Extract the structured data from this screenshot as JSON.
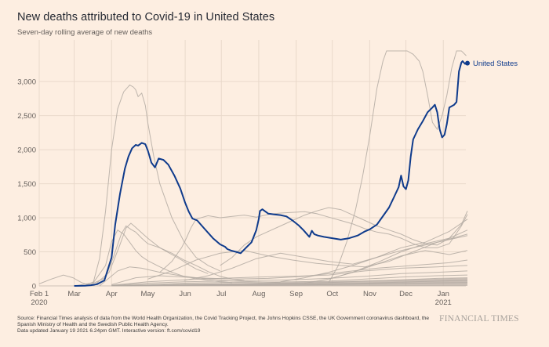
{
  "header": {
    "title": "New deaths attributed to Covid-19 in United States",
    "subtitle": "Seven-day rolling average of new deaths"
  },
  "footer": {
    "source_line": "Source: Financial Times analysis of data from the World Health Organization, the Covid Tracking Project, the Johns Hopkins CSSE, the UK Government coronavirus dashboard, the Spanish Ministry of Health and the Swedish Public Health Agency.",
    "updated_line": "Data updated January 19 2021 6.24pm GMT. Interactive version: ft.com/covid19",
    "logo": "FINANCIAL TIMES"
  },
  "colors": {
    "background": "#fdeee1",
    "highlight": "#0f3b8c",
    "context": "#b3aaa2"
  },
  "chart_data": {
    "type": "line",
    "title": "New deaths attributed to Covid-19 in United States",
    "subtitle": "Seven-day rolling average of new deaths",
    "xlabel": "",
    "ylabel": "",
    "x_unit": "days since Feb 1 2020",
    "xlim": [
      0,
      356
    ],
    "ylim": [
      0,
      3450
    ],
    "grid": true,
    "y_ticks": [
      {
        "value": 0,
        "label": "0"
      },
      {
        "value": 500,
        "label": "500"
      },
      {
        "value": 1000,
        "label": "1,000"
      },
      {
        "value": 1500,
        "label": "1,500"
      },
      {
        "value": 2000,
        "label": "2,000"
      },
      {
        "value": 2500,
        "label": "2,500"
      },
      {
        "value": 3000,
        "label": "3,000"
      }
    ],
    "x_ticks": [
      {
        "value": 0,
        "label": "Feb 1",
        "sub": "2020"
      },
      {
        "value": 29,
        "label": "Mar",
        "sub": ""
      },
      {
        "value": 60,
        "label": "Apr",
        "sub": ""
      },
      {
        "value": 90,
        "label": "May",
        "sub": ""
      },
      {
        "value": 121,
        "label": "Jun",
        "sub": ""
      },
      {
        "value": 151,
        "label": "Jul",
        "sub": ""
      },
      {
        "value": 182,
        "label": "Aug",
        "sub": ""
      },
      {
        "value": 213,
        "label": "Sep",
        "sub": ""
      },
      {
        "value": 243,
        "label": "Oct",
        "sub": ""
      },
      {
        "value": 274,
        "label": "Nov",
        "sub": ""
      },
      {
        "value": 304,
        "label": "Dec",
        "sub": ""
      },
      {
        "value": 335,
        "label": "Jan",
        "sub": "2021"
      }
    ],
    "highlight_series": {
      "name": "United States",
      "x": [
        29,
        38,
        43,
        48,
        54,
        60,
        63,
        67,
        71,
        74,
        77,
        80,
        82,
        85,
        88,
        90,
        91,
        93,
        96,
        99,
        103,
        107,
        112,
        117,
        121,
        124,
        127,
        131,
        137,
        144,
        150,
        154,
        156,
        159,
        163,
        167,
        172,
        176,
        180,
        182,
        183,
        185,
        190,
        195,
        200,
        205,
        210,
        215,
        219,
        222,
        224,
        226,
        228,
        231,
        236,
        243,
        250,
        257,
        264,
        270,
        274,
        280,
        284,
        290,
        294,
        298,
        300,
        302,
        304,
        306,
        308,
        310,
        314,
        318,
        322,
        326,
        328,
        330,
        332,
        334,
        336,
        338,
        340,
        344,
        346,
        348,
        350,
        351,
        353,
        355
      ],
      "y": [
        0,
        2,
        10,
        25,
        80,
        420,
        900,
        1350,
        1720,
        1900,
        2020,
        2070,
        2060,
        2100,
        2080,
        1990,
        1930,
        1810,
        1740,
        1870,
        1850,
        1780,
        1620,
        1430,
        1220,
        1090,
        990,
        960,
        840,
        700,
        610,
        575,
        540,
        520,
        500,
        480,
        570,
        640,
        820,
        980,
        1100,
        1125,
        1060,
        1050,
        1040,
        1020,
        960,
        890,
        820,
        760,
        720,
        810,
        760,
        740,
        720,
        700,
        680,
        700,
        740,
        800,
        830,
        900,
        1000,
        1150,
        1300,
        1450,
        1620,
        1460,
        1420,
        1550,
        1900,
        2150,
        2300,
        2420,
        2550,
        2620,
        2660,
        2550,
        2300,
        2180,
        2220,
        2380,
        2620,
        2660,
        2700,
        3150,
        3280,
        3300,
        3260,
        3270
      ]
    },
    "context_series": [
      {
        "name": "context-1",
        "x": [
          0,
          10,
          20,
          28,
          35,
          40,
          45,
          50,
          55,
          60,
          65,
          70,
          75,
          78,
          80,
          82,
          85,
          88,
          90,
          95,
          100,
          105,
          110,
          120,
          130,
          140,
          150
        ],
        "y": [
          30,
          100,
          160,
          120,
          50,
          20,
          60,
          400,
          1100,
          2000,
          2600,
          2850,
          2950,
          2920,
          2880,
          2780,
          2830,
          2650,
          2400,
          1900,
          1500,
          1250,
          1000,
          650,
          420,
          300,
          220
        ]
      },
      {
        "name": "context-2",
        "x": [
          30,
          45,
          55,
          60,
          65,
          70,
          75,
          80,
          85,
          90,
          100,
          110,
          120,
          130,
          140,
          150,
          160
        ],
        "y": [
          0,
          50,
          300,
          650,
          820,
          760,
          640,
          520,
          430,
          370,
          280,
          200,
          140,
          110,
          80,
          60,
          50
        ]
      },
      {
        "name": "context-3",
        "x": [
          40,
          55,
          62,
          68,
          72,
          76,
          80,
          85,
          90,
          100,
          110,
          120,
          130,
          140,
          150,
          160,
          170
        ],
        "y": [
          0,
          120,
          450,
          760,
          880,
          830,
          790,
          700,
          620,
          560,
          480,
          380,
          300,
          210,
          140,
          100,
          80
        ]
      },
      {
        "name": "context-4",
        "x": [
          45,
          58,
          66,
          72,
          76,
          80,
          85,
          90,
          100,
          110,
          118,
          125,
          130,
          140
        ],
        "y": [
          0,
          200,
          560,
          850,
          920,
          860,
          780,
          700,
          560,
          460,
          380,
          300,
          250,
          180
        ]
      },
      {
        "name": "context-5",
        "x": [
          100,
          110,
          118,
          122,
          126,
          130,
          140,
          150,
          160,
          170,
          180,
          190,
          200,
          210,
          220,
          230,
          240,
          250,
          260,
          270,
          280,
          290,
          300,
          310,
          320,
          330,
          340,
          350,
          355
        ],
        "y": [
          200,
          360,
          560,
          700,
          860,
          980,
          1030,
          1000,
          1020,
          1040,
          1010,
          1050,
          1070,
          1080,
          1090,
          1060,
          1010,
          960,
          910,
          840,
          790,
          760,
          700,
          620,
          560,
          560,
          620,
          880,
          1050
        ]
      },
      {
        "name": "context-6",
        "x": [
          240,
          248,
          255,
          262,
          268,
          274,
          280,
          285,
          288,
          292,
          300,
          305,
          310,
          315,
          318,
          322,
          326,
          330,
          334,
          338,
          342,
          346,
          350,
          354
        ],
        "y": [
          50,
          300,
          650,
          1100,
          1600,
          2200,
          2900,
          3300,
          3450,
          3450,
          3450,
          3450,
          3400,
          3300,
          3150,
          2800,
          2400,
          2300,
          2500,
          2800,
          3200,
          3450,
          3450,
          3380
        ]
      },
      {
        "name": "context-7",
        "x": [
          150,
          160,
          170,
          180,
          190,
          200,
          210,
          220,
          230,
          240,
          250,
          260,
          270,
          280,
          290,
          300,
          310,
          320,
          330,
          340,
          350,
          355
        ],
        "y": [
          300,
          420,
          600,
          720,
          800,
          880,
          960,
          1040,
          1100,
          1150,
          1120,
          1040,
          960,
          880,
          820,
          760,
          680,
          620,
          600,
          700,
          900,
          1100
        ]
      },
      {
        "name": "context-8",
        "x": [
          120,
          140,
          160,
          180,
          200,
          220,
          240,
          260,
          280,
          300,
          320,
          340,
          355
        ],
        "y": [
          80,
          150,
          260,
          400,
          480,
          420,
          360,
          320,
          420,
          560,
          640,
          800,
          980
        ]
      },
      {
        "name": "context-9",
        "x": [
          90,
          110,
          130,
          150,
          170,
          190,
          210,
          230,
          250,
          270,
          290,
          310,
          330,
          355
        ],
        "y": [
          100,
          220,
          380,
          480,
          520,
          440,
          380,
          330,
          300,
          280,
          360,
          500,
          640,
          760
        ]
      },
      {
        "name": "context-10",
        "x": [
          50,
          65,
          75,
          85,
          100,
          120,
          140,
          160,
          180,
          200
        ],
        "y": [
          0,
          220,
          280,
          260,
          200,
          140,
          100,
          70,
          60,
          50
        ]
      },
      {
        "name": "context-11",
        "x": [
          200,
          220,
          240,
          260,
          280,
          300,
          320,
          340,
          355
        ],
        "y": [
          60,
          120,
          200,
          300,
          420,
          520,
          600,
          680,
          740
        ]
      },
      {
        "name": "context-12",
        "x": [
          220,
          240,
          260,
          280,
          300,
          320,
          340,
          355
        ],
        "y": [
          40,
          100,
          200,
          320,
          440,
          520,
          460,
          520
        ]
      },
      {
        "name": "context-13",
        "x": [
          60,
          80,
          100,
          130,
          160,
          190,
          220,
          250,
          280,
          310,
          340,
          355
        ],
        "y": [
          20,
          120,
          150,
          120,
          100,
          110,
          140,
          200,
          260,
          300,
          340,
          380
        ]
      },
      {
        "name": "context-14",
        "x": [
          60,
          90,
          120,
          150,
          180,
          210,
          240,
          270,
          300,
          330,
          355
        ],
        "y": [
          10,
          60,
          90,
          110,
          130,
          140,
          160,
          220,
          260,
          280,
          300
        ]
      },
      {
        "name": "context-15",
        "x": [
          60,
          90,
          120,
          150,
          180,
          210,
          240,
          270,
          300,
          330,
          355
        ],
        "y": [
          5,
          40,
          60,
          70,
          80,
          90,
          110,
          140,
          180,
          200,
          220
        ]
      },
      {
        "name": "context-16",
        "x": [
          60,
          90,
          120,
          150,
          180,
          210,
          240,
          270,
          300,
          330,
          355
        ],
        "y": [
          2,
          20,
          40,
          50,
          55,
          60,
          70,
          100,
          130,
          150,
          160
        ]
      },
      {
        "name": "context-17",
        "x": [
          60,
          90,
          120,
          150,
          180,
          210,
          240,
          270,
          300,
          330,
          355
        ],
        "y": [
          0,
          10,
          25,
          30,
          35,
          40,
          50,
          70,
          90,
          110,
          120
        ]
      },
      {
        "name": "context-18",
        "x": [
          60,
          90,
          120,
          150,
          180,
          210,
          240,
          270,
          300,
          330,
          355
        ],
        "y": [
          0,
          5,
          15,
          20,
          22,
          25,
          30,
          40,
          55,
          70,
          80
        ]
      },
      {
        "name": "context-19",
        "x": [
          60,
          90,
          120,
          150,
          180,
          210,
          240,
          270,
          300,
          330,
          355
        ],
        "y": [
          0,
          3,
          8,
          10,
          12,
          14,
          18,
          25,
          35,
          45,
          50
        ]
      },
      {
        "name": "context-20",
        "x": [
          240,
          260,
          280,
          300,
          320,
          340,
          355
        ],
        "y": [
          100,
          200,
          340,
          500,
          620,
          700,
          820
        ]
      }
    ]
  }
}
